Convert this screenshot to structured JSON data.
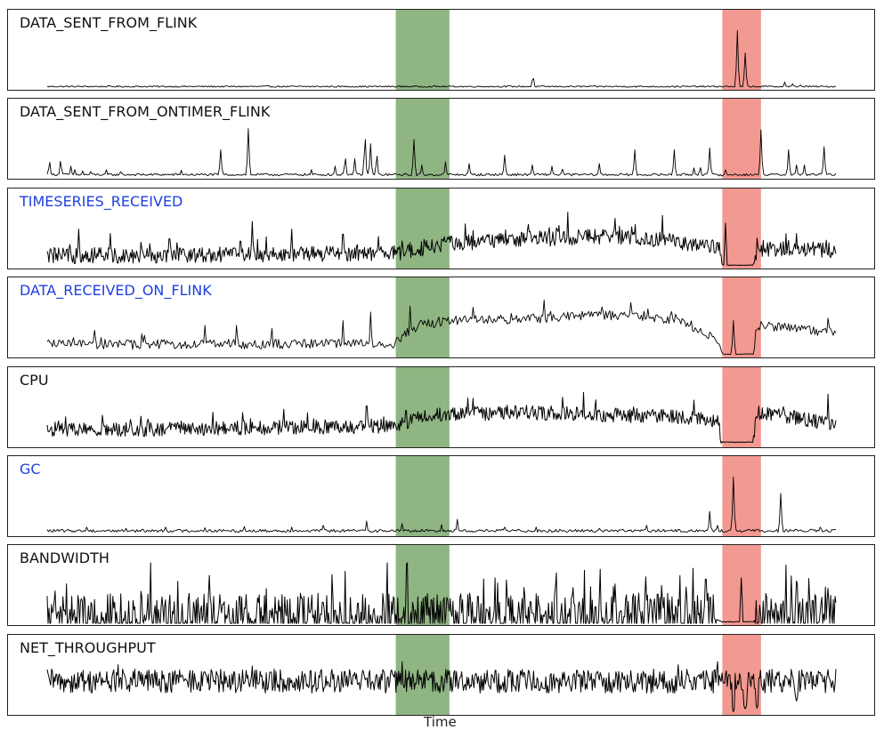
{
  "colors": {
    "line": "#000000",
    "label_default": "#111111",
    "label_highlight": "#1f3fe0",
    "normal_region": "#7ba86c",
    "anomaly_region": "#ef7f75"
  },
  "chart_data": {
    "type": "line",
    "xlabel": "Time",
    "x_range": [
      0,
      1000
    ],
    "shaded_regions": [
      {
        "start": 442,
        "end": 510,
        "color": "#7ba86c",
        "kind": "normal"
      },
      {
        "start": 856,
        "end": 905,
        "color": "#ef7f75",
        "kind": "anomaly"
      }
    ],
    "series": [
      {
        "name": "DATA_SENT_FROM_FLINK",
        "highlight": false,
        "baseline": 0.02,
        "noise": 0.012,
        "dense": false,
        "mod": null,
        "spikes": [
          [
            616,
            0.22
          ],
          [
            875,
            0.95
          ],
          [
            885,
            0.58
          ],
          [
            935,
            0.1
          ],
          [
            945,
            0.07
          ],
          [
            955,
            0.05
          ]
        ],
        "drops": [],
        "y_range": [
          0,
          1
        ]
      },
      {
        "name": "DATA_SENT_FROM_ONTIMER_FLINK",
        "highlight": false,
        "baseline": 0.03,
        "noise": 0.02,
        "dense": false,
        "mod": null,
        "spikes": [
          [
            3,
            0.28
          ],
          [
            17,
            0.3
          ],
          [
            30,
            0.18
          ],
          [
            35,
            0.12
          ],
          [
            45,
            0.1
          ],
          [
            55,
            0.09
          ],
          [
            75,
            0.12
          ],
          [
            93,
            0.1
          ],
          [
            170,
            0.11
          ],
          [
            220,
            0.45
          ],
          [
            255,
            0.8
          ],
          [
            335,
            0.12
          ],
          [
            365,
            0.18
          ],
          [
            378,
            0.35
          ],
          [
            390,
            0.3
          ],
          [
            403,
            0.72
          ],
          [
            410,
            0.55
          ],
          [
            418,
            0.4
          ],
          [
            465,
            0.62
          ],
          [
            475,
            0.2
          ],
          [
            505,
            0.25
          ],
          [
            535,
            0.22
          ],
          [
            580,
            0.36
          ],
          [
            615,
            0.2
          ],
          [
            640,
            0.18
          ],
          [
            653,
            0.15
          ],
          [
            700,
            0.22
          ],
          [
            745,
            0.45
          ],
          [
            795,
            0.45
          ],
          [
            820,
            0.15
          ],
          [
            828,
            0.18
          ],
          [
            840,
            0.48
          ],
          [
            860,
            0.12
          ],
          [
            905,
            0.78
          ],
          [
            940,
            0.45
          ],
          [
            950,
            0.2
          ],
          [
            960,
            0.2
          ],
          [
            985,
            0.5
          ]
        ],
        "drops": [],
        "y_range": [
          0,
          1
        ]
      },
      {
        "name": "TIMESERIES_RECEIVED",
        "highlight": true,
        "baseline": 0.12,
        "noise": 0.13,
        "dense": true,
        "mod": [
          [
            0,
            0.18
          ],
          [
            440,
            0.22
          ],
          [
            480,
            0.3
          ],
          [
            500,
            0.38
          ],
          [
            600,
            0.45
          ],
          [
            700,
            0.5
          ],
          [
            800,
            0.42
          ],
          [
            850,
            0.3
          ],
          [
            856,
            0.02
          ],
          [
            895,
            0.02
          ],
          [
            900,
            0.3
          ],
          [
            1000,
            0.28
          ]
        ],
        "spikes": [
          [
            40,
            0.62
          ],
          [
            80,
            0.55
          ],
          [
            155,
            0.6
          ],
          [
            245,
            0.55
          ],
          [
            260,
            0.75
          ],
          [
            310,
            0.62
          ],
          [
            375,
            0.7
          ],
          [
            420,
            0.5
          ],
          [
            610,
            0.7
          ],
          [
            660,
            0.9
          ],
          [
            720,
            0.8
          ],
          [
            780,
            0.85
          ],
          [
            860,
            0.72
          ],
          [
            950,
            0.55
          ]
        ],
        "drops": [],
        "y_range": [
          0,
          1
        ]
      },
      {
        "name": "DATA_RECEIVED_ON_FLINK",
        "highlight": true,
        "baseline": 0.08,
        "noise": 0.08,
        "dense": false,
        "mod": [
          [
            0,
            0.18
          ],
          [
            440,
            0.2
          ],
          [
            470,
            0.5
          ],
          [
            510,
            0.58
          ],
          [
            600,
            0.6
          ],
          [
            700,
            0.68
          ],
          [
            800,
            0.58
          ],
          [
            850,
            0.25
          ],
          [
            856,
            0.02
          ],
          [
            895,
            0.02
          ],
          [
            900,
            0.5
          ],
          [
            1000,
            0.38
          ]
        ],
        "spikes": [
          [
            60,
            0.42
          ],
          [
            200,
            0.5
          ],
          [
            240,
            0.5
          ],
          [
            285,
            0.45
          ],
          [
            375,
            0.58
          ],
          [
            410,
            0.72
          ],
          [
            460,
            0.82
          ],
          [
            540,
            0.8
          ],
          [
            630,
            0.92
          ],
          [
            740,
            0.88
          ],
          [
            870,
            0.58
          ],
          [
            990,
            0.62
          ]
        ],
        "drops": [],
        "y_range": [
          0,
          1
        ]
      },
      {
        "name": "CPU",
        "highlight": false,
        "baseline": 0.08,
        "noise": 0.12,
        "dense": true,
        "mod": [
          [
            0,
            0.25
          ],
          [
            440,
            0.32
          ],
          [
            480,
            0.5
          ],
          [
            600,
            0.55
          ],
          [
            780,
            0.48
          ],
          [
            850,
            0.4
          ],
          [
            856,
            0.05
          ],
          [
            895,
            0.05
          ],
          [
            900,
            0.55
          ],
          [
            1000,
            0.35
          ]
        ],
        "spikes": [
          [
            70,
            0.5
          ],
          [
            210,
            0.55
          ],
          [
            300,
            0.6
          ],
          [
            405,
            0.85
          ],
          [
            455,
            0.75
          ],
          [
            540,
            0.78
          ],
          [
            680,
            0.88
          ],
          [
            820,
            0.75
          ],
          [
            950,
            0.5
          ],
          [
            990,
            0.85
          ]
        ],
        "drops": [],
        "y_range": [
          0,
          1
        ]
      },
      {
        "name": "GC",
        "highlight": true,
        "baseline": 0.05,
        "noise": 0.025,
        "dense": false,
        "mod": null,
        "spikes": [
          [
            50,
            0.12
          ],
          [
            100,
            0.1
          ],
          [
            150,
            0.12
          ],
          [
            200,
            0.11
          ],
          [
            250,
            0.13
          ],
          [
            310,
            0.12
          ],
          [
            350,
            0.15
          ],
          [
            405,
            0.22
          ],
          [
            450,
            0.18
          ],
          [
            500,
            0.16
          ],
          [
            520,
            0.25
          ],
          [
            580,
            0.12
          ],
          [
            620,
            0.12
          ],
          [
            700,
            0.1
          ],
          [
            760,
            0.15
          ],
          [
            840,
            0.38
          ],
          [
            850,
            0.15
          ],
          [
            870,
            0.95
          ],
          [
            930,
            0.68
          ],
          [
            980,
            0.12
          ]
        ],
        "drops": [],
        "y_range": [
          0,
          1
        ]
      },
      {
        "name": "BANDWIDTH",
        "highlight": false,
        "baseline": 0.05,
        "noise": 0.4,
        "dense": true,
        "mod": [
          [
            0,
            0.1
          ],
          [
            840,
            0.1
          ],
          [
            856,
            0.02
          ],
          [
            895,
            0.02
          ],
          [
            900,
            0.1
          ],
          [
            1000,
            0.1
          ]
        ],
        "spikes": [
          [
            720,
            0.65
          ],
          [
            765,
            0.5
          ],
          [
            810,
            0.6
          ],
          [
            835,
            0.95
          ],
          [
            880,
            0.75
          ],
          [
            950,
            0.7
          ],
          [
            990,
            0.58
          ]
        ],
        "drops": [],
        "y_range": [
          0,
          1
        ]
      },
      {
        "name": "NET_THROUGHPUT",
        "highlight": false,
        "baseline": 0.45,
        "noise": 0.2,
        "dense": true,
        "mod": null,
        "spikes": [
          [
            90,
            0.8
          ],
          [
            165,
            0.82
          ],
          [
            260,
            0.78
          ],
          [
            405,
            0.75
          ],
          [
            450,
            0.85
          ],
          [
            800,
            0.8
          ],
          [
            850,
            0.85
          ],
          [
            870,
            0.98
          ],
          [
            990,
            0.72
          ]
        ],
        "drops": [
          [
            870,
            0.02
          ],
          [
            885,
            0.05
          ],
          [
            900,
            0.08
          ],
          [
            950,
            0.2
          ]
        ],
        "y_range": [
          0,
          1
        ]
      }
    ]
  }
}
